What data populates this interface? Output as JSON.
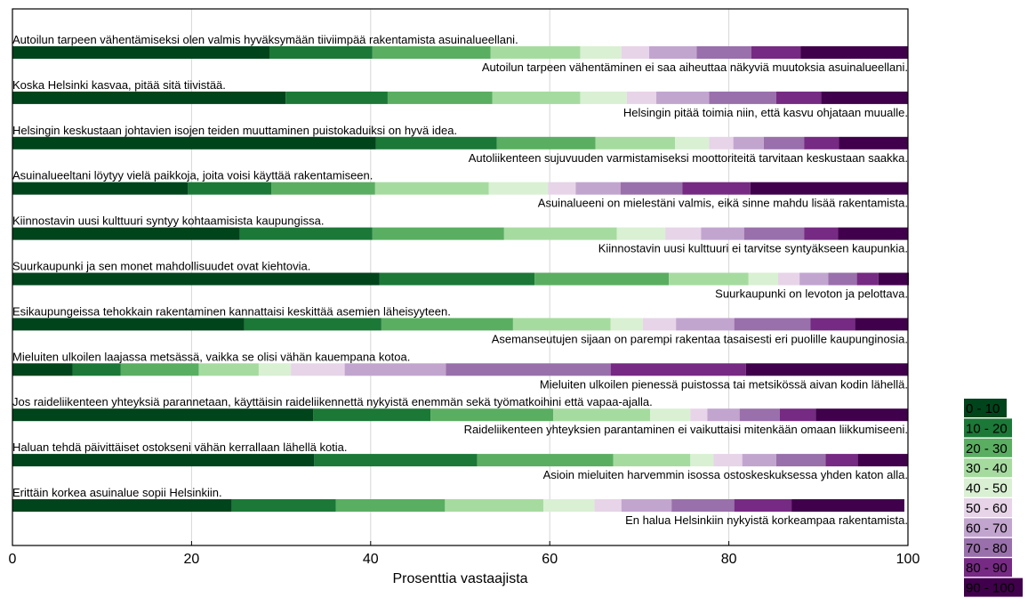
{
  "chart_data": {
    "type": "bar",
    "orientation": "horizontal",
    "stacked": true,
    "xlabel": "Prosenttia vastaajista",
    "xlim": [
      0,
      100
    ],
    "xticks": [
      "0",
      "20",
      "40",
      "60",
      "80",
      "100"
    ],
    "grid": true,
    "legend_position": "right",
    "legend": [
      "0 - 10",
      "10 - 20",
      "20 - 30",
      "30 - 40",
      "40 - 50",
      "50 - 60",
      "60 - 70",
      "70 - 80",
      "80 - 90",
      "90 - 100"
    ],
    "colors": [
      "#00441b",
      "#1b7837",
      "#5aae61",
      "#a6dba0",
      "#d9f0d3",
      "#e7d4e8",
      "#c2a5cf",
      "#9970ab",
      "#762a83",
      "#40004b"
    ],
    "rows": [
      {
        "left": "Autoilun tarpeen vähentämiseksi olen valmis hyväksymään tiiviimpää rakentamista asuinalueellani.",
        "right": "Autoilun tarpeen vähentäminen ei saa aiheuttaa näkyviä muutoksia asuinalueellani.",
        "values": [
          28.7,
          11.5,
          13.2,
          10.0,
          4.6,
          3.1,
          5.3,
          6.1,
          5.5,
          12.0
        ]
      },
      {
        "left": "Koska Helsinki kasvaa, pitää sitä tiivistää.",
        "right": "Helsingin pitää toimia niin, että kasvu ohjataan muualle.",
        "values": [
          30.5,
          11.4,
          11.7,
          9.8,
          5.2,
          3.3,
          5.9,
          7.5,
          5.0,
          9.7
        ]
      },
      {
        "left": "Helsingin keskustaan johtavien isojen teiden muuttaminen puistokaduiksi on hyvä idea.",
        "right": "Autoliikenteen sujuvuuden varmistamiseksi moottoriteitä tarvitaan keskustaan saakka.",
        "values": [
          40.6,
          13.5,
          11.0,
          8.9,
          3.8,
          2.7,
          3.4,
          4.5,
          3.9,
          7.7
        ]
      },
      {
        "left": "Asuinalueeltani löytyy vielä paikkoja, joita voisi käyttää rakentamiseen.",
        "right": "Asuinalueeni on mielestäni valmis, eikä sinne mahdu lisää rakentamista.",
        "values": [
          19.6,
          9.3,
          11.6,
          12.7,
          6.6,
          3.1,
          5.0,
          6.9,
          7.6,
          17.6
        ]
      },
      {
        "left": "Kiinnostavin uusi kulttuuri syntyy kohtaamisista kaupungissa.",
        "right": "Kiinnostavin uusi kulttuuri ei tarvitse syntyäkseen kaupunkia.",
        "values": [
          25.4,
          14.8,
          14.7,
          12.6,
          5.4,
          4.0,
          4.8,
          6.7,
          3.8,
          7.8
        ]
      },
      {
        "left": "Suurkaupunki ja sen monet mahdollisuudet ovat kiehtovia.",
        "right": "Suurkaupunki on levoton ja pelottava.",
        "values": [
          41.0,
          17.3,
          15.0,
          8.9,
          3.3,
          2.4,
          3.2,
          3.2,
          2.4,
          3.4
        ]
      },
      {
        "left": "Esikaupungeissa tehokkain rakentaminen kannattaisi keskittää asemien läheisyyteen.",
        "right": "Asemanseutujen sijaan on parempi rakentaa tasaisesti eri puolille kaupunginosia.",
        "values": [
          25.9,
          15.3,
          14.7,
          10.9,
          3.6,
          3.7,
          6.5,
          8.5,
          5.0,
          5.9
        ]
      },
      {
        "left": "Mieluiten ulkoilen laajassa metsässä, vaikka se olisi vähän kauempana kotoa.",
        "right": "Mieluiten ulkoilen pienessä puistossa tai metsikössä aivan kodin lähellä.",
        "values": [
          6.7,
          5.4,
          8.7,
          6.7,
          3.6,
          6.0,
          11.3,
          18.4,
          15.1,
          18.1
        ]
      },
      {
        "left": "Jos raideliikenteen yhteyksiä parannetaan, käyttäisin raideliikennettä nykyistä enemmän sekä työmatkoihini että vapaa-ajalla.",
        "right": "Raideliikenteen yhteyksien parantaminen ei vaikuttaisi mitenkään omaan liikkumiseeni.",
        "values": [
          33.6,
          13.1,
          13.7,
          10.8,
          4.5,
          1.9,
          3.6,
          4.5,
          4.0,
          10.3
        ]
      },
      {
        "left": "Haluan tehdä päivittäiset ostokseni vähän kerrallaan lähellä kotia.",
        "right": "Asioin mieluiten harvemmin isossa ostoskeskuksessa yhden katon alla.",
        "values": [
          33.7,
          18.2,
          15.2,
          8.6,
          2.6,
          3.2,
          3.8,
          5.5,
          3.6,
          5.6
        ]
      },
      {
        "left": "Erittäin korkea asuinalue sopii Helsinkiin.",
        "right": "En halua Helsinkiin nykyistä korkeampaa rakentamista.",
        "values": [
          24.5,
          11.6,
          12.2,
          11.0,
          5.7,
          3.0,
          5.6,
          7.0,
          6.4,
          12.6
        ]
      }
    ]
  }
}
